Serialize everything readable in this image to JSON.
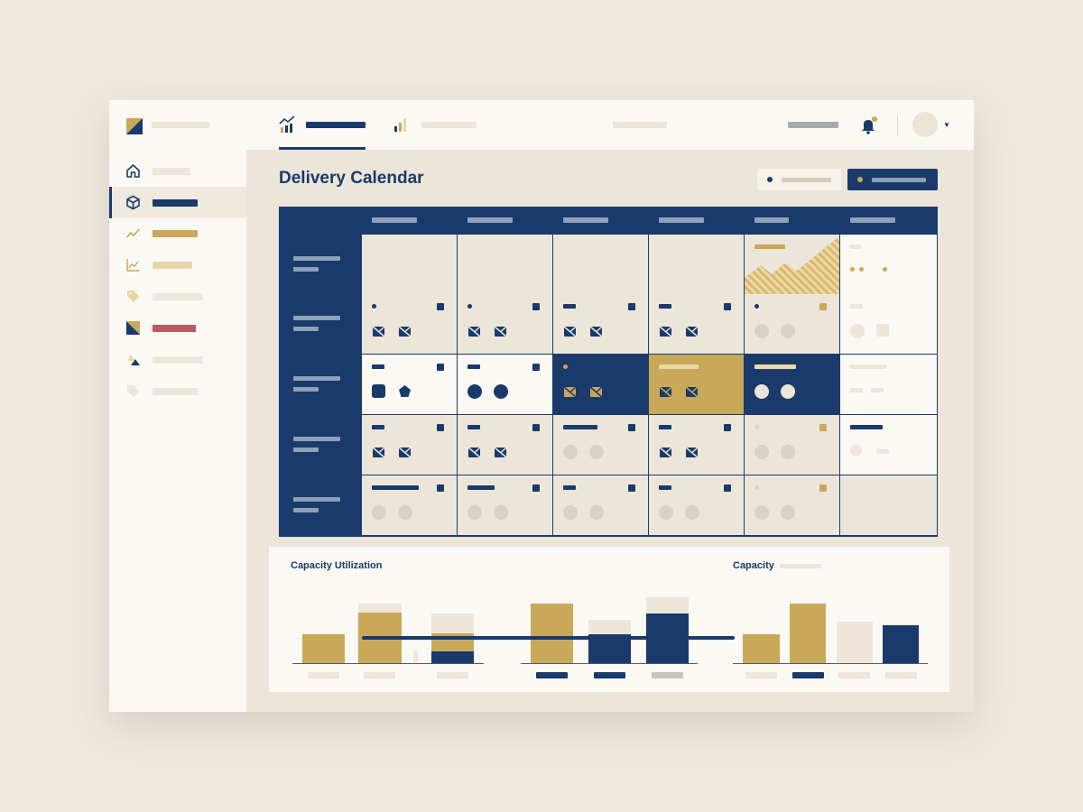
{
  "page": {
    "title": "Delivery Calendar"
  },
  "colors": {
    "navy": "#193a6b",
    "gold": "#c9a85a",
    "red": "#bd5563",
    "cream": "#fbf9f3",
    "beige": "#ece6da",
    "light": "#ede6d9"
  },
  "sidebar": {
    "items": [
      {
        "icon": "home-icon",
        "active": false
      },
      {
        "icon": "box-icon",
        "active": true
      },
      {
        "icon": "trend-icon",
        "active": false
      },
      {
        "icon": "line-chart-icon",
        "active": false
      },
      {
        "icon": "tag-icon",
        "active": false
      },
      {
        "icon": "flag-icon",
        "active": false
      },
      {
        "icon": "shapes-icon",
        "active": false
      },
      {
        "icon": "tag-outline-icon",
        "active": false
      }
    ]
  },
  "topbar": {
    "tabs": [
      {
        "icon": "analytics-icon",
        "active": true
      },
      {
        "icon": "bar-chart-icon",
        "active": false
      },
      {
        "icon": "",
        "active": false
      }
    ],
    "notification_icon": "bell-icon"
  },
  "bottom": {
    "left_title": "Capacity Utilization",
    "right_title": "Capacity"
  }
}
